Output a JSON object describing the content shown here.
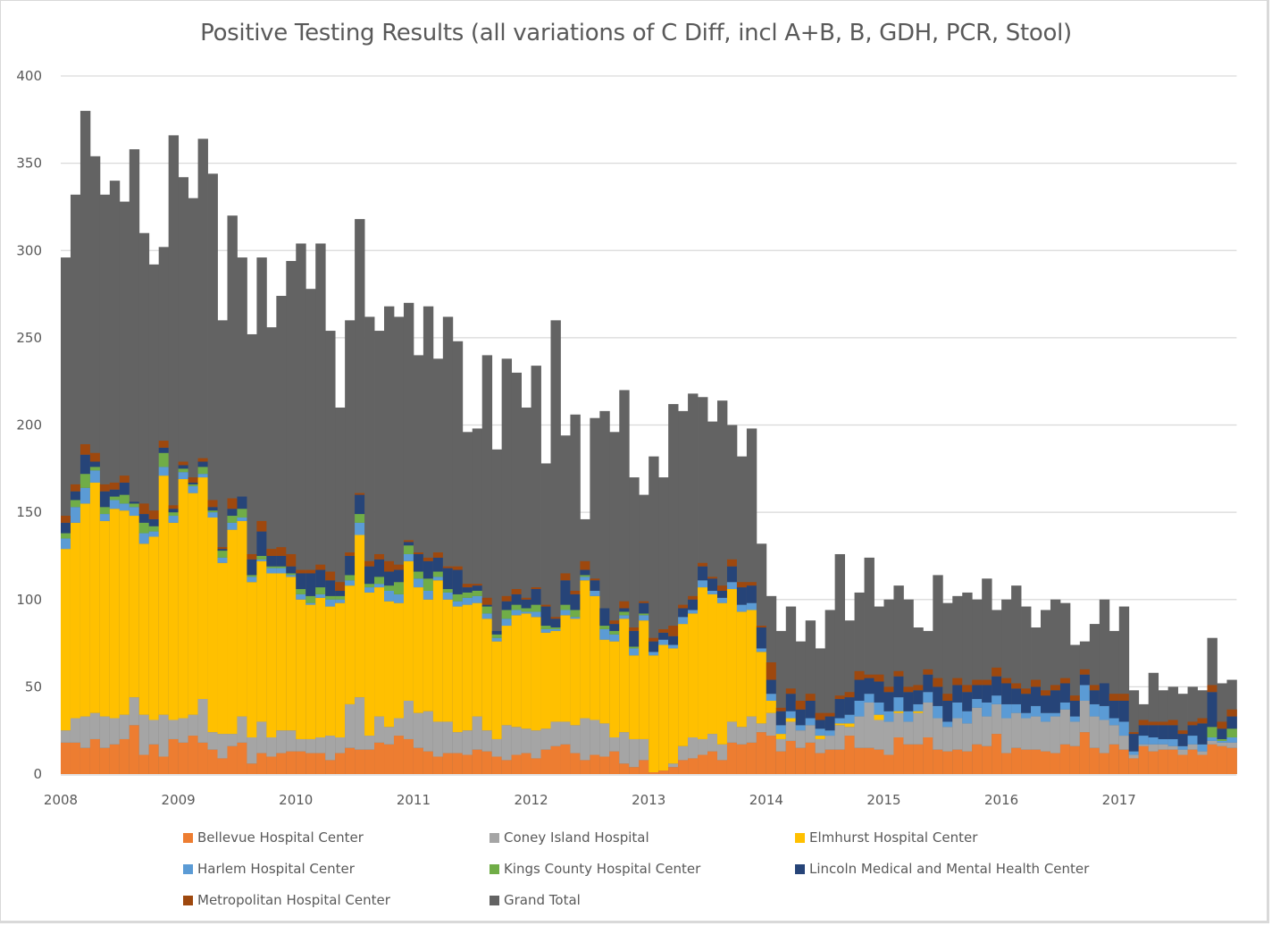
{
  "chart_data": {
    "type": "bar",
    "stacked": true,
    "title": "Positive Testing Results (all variations of C Diff, incl A+B, B, GDH, PCR, Stool)",
    "xlabel": "",
    "ylabel": "",
    "ylim": [
      0,
      400
    ],
    "yticks": [
      0,
      50,
      100,
      150,
      200,
      250,
      300,
      350,
      400
    ],
    "grid": true,
    "legend_position": "bottom",
    "x_tick_labels": [
      "2008",
      "2009",
      "2010",
      "2011",
      "2012",
      "2013",
      "2014",
      "2015",
      "2016",
      "2017"
    ],
    "x_granularity": "monthly",
    "x_start": "2008-01",
    "months": 120,
    "series": [
      {
        "name": "Bellevue Hospital Center",
        "color": "#ED7D31",
        "values": [
          18,
          18,
          15,
          20,
          15,
          17,
          20,
          28,
          11,
          17,
          10,
          20,
          18,
          22,
          18,
          14,
          9,
          16,
          18,
          6,
          12,
          10,
          12,
          13,
          13,
          12,
          12,
          8,
          12,
          15,
          14,
          14,
          18,
          17,
          22,
          20,
          15,
          13,
          10,
          12,
          12,
          11,
          14,
          13,
          10,
          8,
          11,
          12,
          9,
          14,
          16,
          17,
          12,
          8,
          11,
          10,
          13,
          6,
          4,
          8,
          1,
          2,
          4,
          8,
          9,
          11,
          13,
          8,
          18,
          17,
          18,
          24,
          22,
          13,
          19,
          15,
          18,
          12,
          14,
          14,
          22,
          15,
          15,
          14,
          11,
          21,
          17,
          17,
          21,
          14,
          13,
          14,
          13,
          17,
          16,
          23,
          12,
          15,
          14,
          14,
          13,
          12,
          17,
          16,
          24,
          15,
          12,
          17,
          14,
          9,
          16,
          13,
          14,
          14,
          11,
          14,
          11,
          17,
          16,
          15
        ]
      },
      {
        "name": "Coney Island Hospital",
        "color": "#A5A5A5",
        "values": [
          7,
          14,
          18,
          15,
          18,
          15,
          14,
          16,
          23,
          14,
          24,
          11,
          14,
          12,
          25,
          10,
          14,
          7,
          15,
          15,
          18,
          11,
          13,
          12,
          7,
          8,
          9,
          14,
          9,
          25,
          30,
          8,
          15,
          10,
          10,
          22,
          20,
          23,
          20,
          18,
          12,
          14,
          19,
          12,
          10,
          20,
          16,
          14,
          16,
          12,
          14,
          13,
          16,
          24,
          20,
          19,
          8,
          18,
          16,
          12,
          0,
          0,
          2,
          8,
          12,
          9,
          10,
          9,
          12,
          10,
          15,
          5,
          13,
          7,
          11,
          10,
          10,
          8,
          8,
          14,
          5,
          18,
          26,
          17,
          19,
          14,
          13,
          18,
          20,
          18,
          14,
          18,
          16,
          21,
          17,
          17,
          20,
          20,
          18,
          19,
          17,
          21,
          20,
          14,
          18,
          18,
          19,
          11,
          8,
          2,
          1,
          4,
          3,
          2,
          3,
          3,
          2,
          2,
          2,
          3
        ]
      },
      {
        "name": "Elmhurst Hospital Center",
        "color": "#FFC000",
        "values": [
          104,
          112,
          122,
          132,
          112,
          120,
          117,
          104,
          98,
          105,
          137,
          113,
          137,
          127,
          127,
          123,
          98,
          117,
          112,
          89,
          92,
          94,
          90,
          88,
          80,
          77,
          80,
          74,
          77,
          68,
          93,
          82,
          74,
          72,
          66,
          80,
          72,
          64,
          81,
          70,
          72,
          72,
          65,
          64,
          56,
          57,
          64,
          66,
          65,
          55,
          52,
          61,
          61,
          79,
          71,
          48,
          55,
          65,
          48,
          68,
          67,
          72,
          66,
          70,
          71,
          87,
          80,
          81,
          76,
          66,
          61,
          41,
          7,
          3,
          2,
          0,
          0,
          2,
          0,
          1,
          2,
          0,
          0,
          3,
          0,
          1,
          0,
          1,
          0,
          0,
          0,
          0,
          0,
          0,
          0,
          0,
          0,
          0,
          0,
          0,
          0,
          0,
          0,
          0,
          0,
          0,
          0,
          0,
          0,
          0,
          0,
          0,
          0,
          0,
          0,
          0,
          0,
          0,
          0,
          0
        ]
      },
      {
        "name": "Harlem Hospital Center",
        "color": "#5B9BD5",
        "values": [
          6,
          9,
          9,
          7,
          4,
          5,
          4,
          5,
          6,
          3,
          5,
          4,
          4,
          4,
          2,
          3,
          3,
          4,
          2,
          3,
          1,
          3,
          3,
          1,
          3,
          1,
          2,
          4,
          2,
          3,
          7,
          3,
          2,
          6,
          5,
          4,
          5,
          5,
          2,
          4,
          3,
          4,
          4,
          3,
          2,
          4,
          3,
          1,
          3,
          2,
          1,
          3,
          1,
          2,
          3,
          6,
          4,
          2,
          4,
          3,
          2,
          3,
          2,
          4,
          2,
          4,
          2,
          3,
          4,
          4,
          4,
          2,
          4,
          5,
          4,
          3,
          4,
          4,
          3,
          3,
          5,
          9,
          5,
          7,
          6,
          8,
          6,
          4,
          6,
          7,
          3,
          9,
          7,
          5,
          8,
          5,
          8,
          5,
          3,
          6,
          5,
          2,
          4,
          3,
          9,
          7,
          8,
          4,
          8,
          2,
          5,
          4,
          3,
          4,
          2,
          5,
          4,
          2,
          1,
          3
        ]
      },
      {
        "name": "Kings County Hospital Center",
        "color": "#70AD47",
        "values": [
          3,
          4,
          8,
          2,
          4,
          2,
          5,
          2,
          6,
          3,
          8,
          2,
          2,
          1,
          4,
          1,
          4,
          4,
          5,
          1,
          2,
          1,
          1,
          1,
          3,
          4,
          4,
          2,
          2,
          3,
          5,
          2,
          4,
          3,
          7,
          5,
          4,
          7,
          3,
          2,
          4,
          3,
          3,
          4,
          2,
          5,
          3,
          2,
          4,
          2,
          1,
          3,
          4,
          1,
          0,
          2,
          2,
          2,
          1,
          1,
          0,
          0,
          0,
          0,
          0,
          0,
          0,
          0,
          0,
          0,
          0,
          0,
          0,
          0,
          0,
          0,
          0,
          0,
          0,
          0,
          0,
          0,
          0,
          0,
          0,
          0,
          0,
          0,
          0,
          0,
          0,
          0,
          0,
          0,
          0,
          0,
          0,
          0,
          0,
          0,
          0,
          0,
          0,
          0,
          0,
          0,
          0,
          0,
          0,
          0,
          0,
          0,
          0,
          0,
          0,
          0,
          0,
          6,
          1,
          5
        ]
      },
      {
        "name": "Lincoln Medical and Mental Health Center",
        "color": "#264478",
        "values": [
          6,
          5,
          11,
          3,
          9,
          4,
          7,
          1,
          5,
          4,
          3,
          2,
          2,
          1,
          3,
          2,
          1,
          4,
          7,
          9,
          14,
          6,
          6,
          4,
          9,
          13,
          10,
          9,
          3,
          11,
          11,
          10,
          10,
          8,
          7,
          2,
          10,
          10,
          8,
          12,
          14,
          3,
          3,
          1,
          2,
          5,
          6,
          5,
          9,
          11,
          5,
          14,
          9,
          3,
          6,
          10,
          4,
          2,
          9,
          6,
          6,
          4,
          5,
          5,
          6,
          8,
          7,
          4,
          9,
          10,
          10,
          12,
          8,
          8,
          10,
          9,
          10,
          5,
          8,
          11,
          10,
          12,
          9,
          12,
          11,
          12,
          11,
          8,
          10,
          11,
          12,
          10,
          11,
          8,
          10,
          11,
          12,
          9,
          11,
          11,
          10,
          13,
          11,
          9,
          6,
          8,
          13,
          10,
          12,
          10,
          6,
          7,
          8,
          8,
          7,
          6,
          12,
          20,
          6,
          7
        ]
      },
      {
        "name": "Metropolitan Hospital Center",
        "color": "#9E480E",
        "values": [
          4,
          4,
          6,
          5,
          4,
          4,
          4,
          0,
          6,
          5,
          4,
          2,
          2,
          3,
          2,
          4,
          1,
          6,
          0,
          3,
          6,
          4,
          5,
          7,
          2,
          2,
          3,
          5,
          5,
          2,
          1,
          3,
          3,
          6,
          3,
          1,
          1,
          2,
          3,
          1,
          2,
          2,
          1,
          4,
          0,
          3,
          3,
          1,
          1,
          1,
          1,
          4,
          2,
          5,
          1,
          0,
          2,
          4,
          2,
          1,
          2,
          2,
          6,
          2,
          2,
          2,
          1,
          3,
          4,
          3,
          2,
          1,
          10,
          2,
          3,
          5,
          4,
          4,
          2,
          2,
          3,
          5,
          2,
          4,
          3,
          3,
          3,
          3,
          3,
          5,
          4,
          4,
          4,
          3,
          3,
          5,
          3,
          3,
          3,
          4,
          3,
          3,
          3,
          3,
          3,
          3,
          0,
          4,
          4,
          1,
          3,
          2,
          2,
          3,
          2,
          2,
          3,
          4,
          4,
          4
        ]
      },
      {
        "name": "Grand Total",
        "color": "#636363",
        "values": [
          296,
          332,
          380,
          354,
          332,
          340,
          328,
          358,
          310,
          292,
          302,
          366,
          342,
          330,
          364,
          344,
          260,
          320,
          296,
          252,
          296,
          256,
          274,
          294,
          304,
          278,
          304,
          254,
          210,
          260,
          318,
          262,
          254,
          268,
          262,
          270,
          240,
          268,
          238,
          262,
          248,
          196,
          198,
          240,
          186,
          238,
          230,
          210,
          234,
          178,
          260,
          194,
          206,
          146,
          204,
          208,
          196,
          220,
          170,
          160,
          182,
          170,
          212,
          208,
          218,
          216,
          202,
          214,
          200,
          182,
          198,
          132,
          102,
          82,
          96,
          76,
          88,
          72,
          94,
          126,
          88,
          104,
          124,
          96,
          100,
          108,
          100,
          84,
          82,
          114,
          98,
          102,
          104,
          100,
          112,
          94,
          100,
          108,
          96,
          84,
          94,
          100,
          98,
          74,
          76,
          86,
          100,
          82,
          96,
          48,
          40,
          58,
          48,
          50,
          46,
          50,
          48,
          78,
          52,
          54
        ]
      }
    ]
  }
}
